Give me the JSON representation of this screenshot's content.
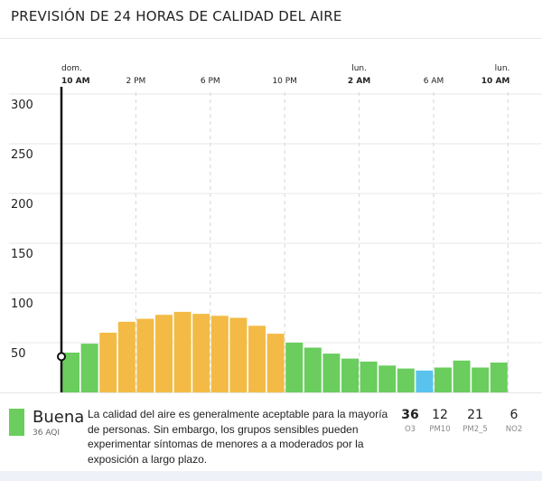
{
  "page": {
    "title": "PREVISIÓN DE 24 HORAS DE CALIDAD DEL AIRE"
  },
  "colors": {
    "good": "#6acd5e",
    "moderate": "#f3bb45",
    "excellent": "#59c3ee",
    "axis": "#111111",
    "grid": "#e7e7e7"
  },
  "chart_data": {
    "type": "bar",
    "y_ticks": [
      50,
      100,
      150,
      200,
      250,
      300
    ],
    "ylim": [
      0,
      300
    ],
    "x_ticks": [
      {
        "index": 0,
        "day": "dom.",
        "time": "10 AM",
        "bold": true
      },
      {
        "index": 4,
        "day": "",
        "time": "2 PM",
        "bold": false
      },
      {
        "index": 8,
        "day": "",
        "time": "6 PM",
        "bold": false
      },
      {
        "index": 12,
        "day": "",
        "time": "10 PM",
        "bold": false
      },
      {
        "index": 16,
        "day": "lun.",
        "time": "2 AM",
        "bold": true
      },
      {
        "index": 20,
        "day": "",
        "time": "6 AM",
        "bold": false
      },
      {
        "index": 24,
        "day": "lun.",
        "time": "10 AM",
        "bold": true
      }
    ],
    "values": [
      40,
      49,
      60,
      71,
      74,
      78,
      81,
      79,
      77,
      75,
      67,
      59,
      50,
      45,
      39,
      34,
      31,
      27,
      24,
      22,
      25,
      32,
      25,
      30
    ],
    "categories": [
      "good",
      "good",
      "moderate",
      "moderate",
      "moderate",
      "moderate",
      "moderate",
      "moderate",
      "moderate",
      "moderate",
      "moderate",
      "moderate",
      "good",
      "good",
      "good",
      "good",
      "good",
      "good",
      "good",
      "excellent",
      "good",
      "good",
      "good",
      "good"
    ],
    "current_value": 36
  },
  "summary": {
    "category": "Buena",
    "aqi_label": "36 AQI",
    "description": "La calidad del aire es generalmente aceptable para la mayoría de personas. Sin embargo, los grupos sensibles pueden experimentar síntomas de menores a a moderados por la exposición a largo plazo."
  },
  "pollutants": [
    {
      "value": "36",
      "name": "O3",
      "bold": true
    },
    {
      "value": "12",
      "name": "PM10",
      "bold": false
    },
    {
      "value": "21",
      "name": "PM2_5",
      "bold": false
    },
    {
      "value": "6",
      "name": "NO2",
      "bold": false
    }
  ]
}
